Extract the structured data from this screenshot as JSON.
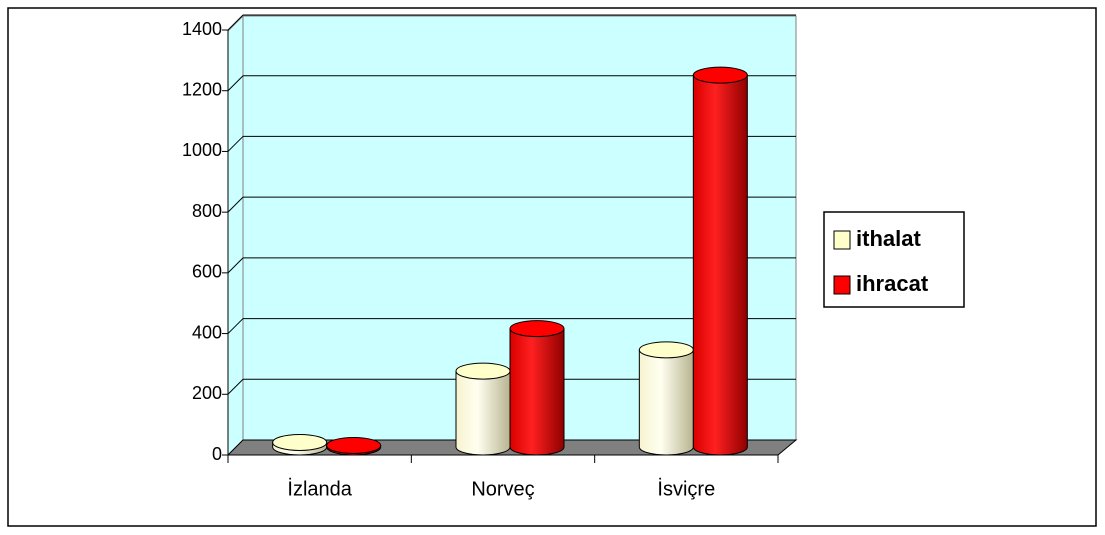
{
  "chart_data": {
    "type": "bar3d-cylinder",
    "categories": [
      "İzlanda",
      "Norveç",
      "İsviçre"
    ],
    "series": [
      {
        "name": "ithalat",
        "color": "#ffffcc",
        "values": [
          15,
          250,
          320
        ]
      },
      {
        "name": "ihracat",
        "color": "#ff0000",
        "values": [
          5,
          390,
          1225
        ]
      }
    ],
    "ylim": [
      0,
      1400
    ],
    "yticks": [
      0,
      200,
      400,
      600,
      800,
      1000,
      1200,
      1400
    ],
    "grid": true,
    "legend": "right"
  }
}
